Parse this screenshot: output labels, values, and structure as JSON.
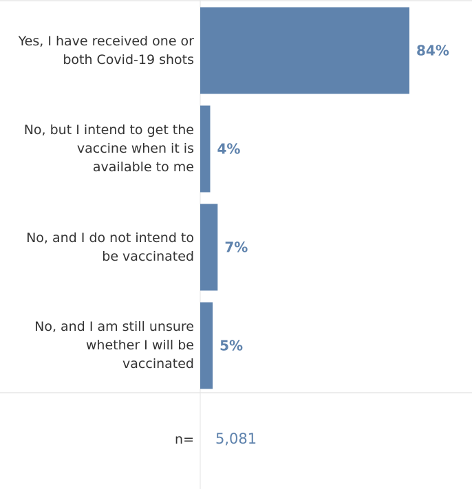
{
  "chart_data": {
    "type": "bar",
    "orientation": "horizontal",
    "categories": [
      "Yes, I have received one or\nboth Covid-19 shots",
      "No, but I intend to get the\nvaccine when it is\navailable to me",
      "No, and I do not intend to\nbe vaccinated",
      "No, and I am still unsure\nwhether I will be\nvaccinated"
    ],
    "values": [
      84,
      4,
      7,
      5
    ],
    "value_labels": [
      "84%",
      "4%",
      "7%",
      "5%"
    ],
    "xlim": [
      0,
      100
    ],
    "bar_color": "#5f83ad",
    "grid": false
  },
  "footer": {
    "n_label": "n=",
    "n_value": "5,081"
  }
}
